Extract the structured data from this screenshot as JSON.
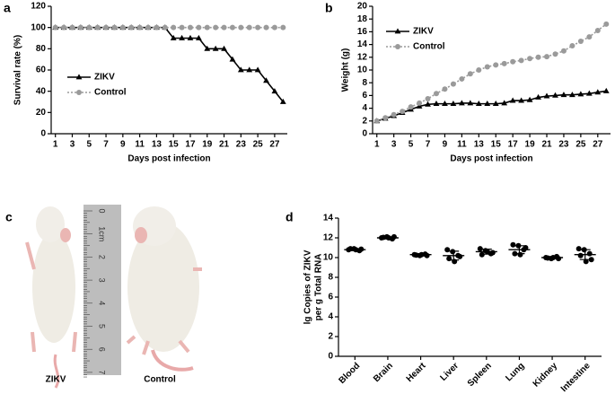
{
  "chart_data": [
    {
      "type": "line",
      "panel_label": "a",
      "xlabel": "Days post infection",
      "ylabel": "Survival rate (%)",
      "x": [
        1,
        2,
        3,
        4,
        5,
        6,
        7,
        8,
        9,
        10,
        11,
        12,
        13,
        14,
        15,
        16,
        17,
        18,
        19,
        20,
        21,
        22,
        23,
        24,
        25,
        26,
        27,
        28
      ],
      "xlim": [
        0.5,
        28.5
      ],
      "xticks": [
        1,
        3,
        5,
        7,
        9,
        11,
        13,
        15,
        17,
        19,
        21,
        23,
        25,
        27
      ],
      "ylim": [
        0,
        120
      ],
      "yticks": [
        0,
        20,
        40,
        60,
        80,
        100,
        120
      ],
      "legend": "middle-left",
      "series": [
        {
          "name": "ZIKV",
          "color": "#000000",
          "marker": "triangle",
          "dash": "solid",
          "values": [
            100,
            100,
            100,
            100,
            100,
            100,
            100,
            100,
            100,
            100,
            100,
            100,
            100,
            100,
            90,
            90,
            90,
            90,
            80,
            80,
            80,
            70,
            60,
            60,
            60,
            50,
            40,
            30
          ]
        },
        {
          "name": "Control",
          "color": "#9a9a9a",
          "marker": "circle",
          "dash": "dotted",
          "values": [
            100,
            100,
            100,
            100,
            100,
            100,
            100,
            100,
            100,
            100,
            100,
            100,
            100,
            100,
            100,
            100,
            100,
            100,
            100,
            100,
            100,
            100,
            100,
            100,
            100,
            100,
            100,
            100
          ]
        }
      ]
    },
    {
      "type": "line",
      "panel_label": "b",
      "xlabel": "Days post infection",
      "ylabel": "Weight (g)",
      "x": [
        1,
        2,
        3,
        4,
        5,
        6,
        7,
        8,
        9,
        10,
        11,
        12,
        13,
        14,
        15,
        16,
        17,
        18,
        19,
        20,
        21,
        22,
        23,
        24,
        25,
        26,
        27,
        28
      ],
      "xlim": [
        0.5,
        28.5
      ],
      "xticks": [
        1,
        3,
        5,
        7,
        9,
        11,
        13,
        15,
        17,
        19,
        21,
        23,
        25,
        27
      ],
      "ylim": [
        0,
        20
      ],
      "yticks": [
        0,
        2,
        4,
        6,
        8,
        10,
        12,
        14,
        16,
        18,
        20
      ],
      "legend": "upper-left",
      "series": [
        {
          "name": "ZIKV",
          "color": "#000000",
          "marker": "triangle",
          "dash": "solid",
          "values": [
            2,
            2.4,
            2.8,
            3.3,
            3.8,
            4.3,
            4.6,
            4.7,
            4.7,
            4.7,
            4.8,
            4.8,
            4.7,
            4.7,
            4.7,
            4.8,
            5.2,
            5.2,
            5.3,
            5.7,
            5.9,
            6,
            6.1,
            6.1,
            6.2,
            6.3,
            6.5,
            6.7
          ]
        },
        {
          "name": "Control",
          "color": "#9a9a9a",
          "marker": "circle",
          "dash": "dotted",
          "values": [
            2,
            2.5,
            3,
            3.5,
            4.2,
            4.8,
            5.5,
            6.3,
            7,
            7.8,
            8.6,
            9.4,
            10,
            10.5,
            10.8,
            11,
            11.3,
            11.5,
            11.8,
            12,
            12.1,
            12.5,
            13,
            13.8,
            14.5,
            15.2,
            16.2,
            17.2
          ]
        }
      ]
    },
    {
      "type": "dot",
      "panel_label": "d",
      "ylabel": [
        "lg Copies of ZIKV",
        "per g Total RNA"
      ],
      "categories": [
        "Blood",
        "Brain",
        "Heart",
        "Liver",
        "Spleen",
        "Lung",
        "Kidney",
        "Intestine"
      ],
      "ylim": [
        0,
        14
      ],
      "yticks": [
        0,
        2,
        4,
        6,
        8,
        10,
        12,
        14
      ],
      "color": "#000000",
      "points": [
        [
          10.8,
          10.9,
          10.7,
          10.9,
          10.8,
          10.85
        ],
        [
          12.0,
          12.1,
          11.9,
          12.05,
          12.0,
          12.1
        ],
        [
          10.3,
          10.2,
          10.35,
          10.25,
          10.3,
          10.2
        ],
        [
          10.8,
          10.6,
          10.2,
          9.9,
          9.6,
          10.1
        ],
        [
          10.9,
          10.7,
          10.4,
          10.3,
          10.6,
          10.5
        ],
        [
          11.3,
          11.2,
          10.8,
          10.4,
          10.3,
          11.0
        ],
        [
          10.0,
          9.9,
          10.1,
          9.95,
          10.0,
          9.9
        ],
        [
          10.9,
          10.8,
          10.4,
          10.2,
          9.6,
          9.8
        ]
      ],
      "means": [
        10.8,
        12.0,
        10.3,
        10.2,
        10.6,
        10.8,
        10.0,
        10.3
      ],
      "errors": [
        0.1,
        0.1,
        0.1,
        0.45,
        0.25,
        0.4,
        0.1,
        0.5
      ]
    }
  ],
  "panel_c": {
    "panel_label": "c",
    "labels": [
      "ZIKV",
      "Control"
    ],
    "ruler_labels": [
      "0",
      "1cm",
      "2",
      "3",
      "4",
      "5",
      "6",
      "7"
    ]
  }
}
